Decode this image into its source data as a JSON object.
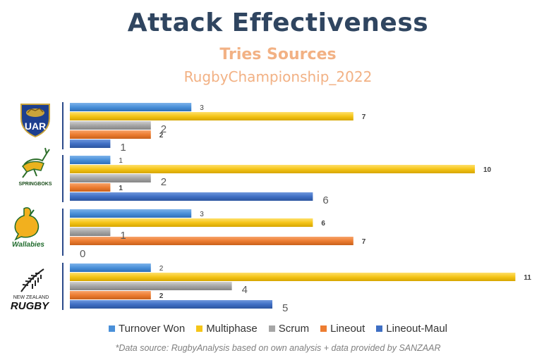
{
  "title": "Attack Effectiveness",
  "subtitle": "Tries Sources",
  "subtitle2": "RugbyChampionship_2022",
  "source": "*Data source: RugbyAnalysis based on own analysis + data provided by SANZAAR",
  "logos": {
    "uar": "UAR",
    "springboks": "SPRINGBOKS",
    "wallabies": "Wallabies",
    "nz_top": "NEW ZEALAND",
    "nz_bottom": "RUGBY"
  },
  "chart_data": {
    "type": "bar",
    "orientation": "horizontal",
    "categories": [
      "UAR",
      "Springboks",
      "Wallabies",
      "New Zealand Rugby"
    ],
    "series": [
      {
        "name": "Turnover Won",
        "color": "#4a90d9",
        "values": [
          3,
          1,
          3,
          2
        ]
      },
      {
        "name": "Multiphase",
        "color": "#f5c518",
        "values": [
          7,
          10,
          6,
          11
        ]
      },
      {
        "name": "Scrum",
        "color": "#a6a6a6",
        "values": [
          2,
          2,
          1,
          4
        ]
      },
      {
        "name": "Lineout",
        "color": "#ed7d31",
        "values": [
          2,
          1,
          7,
          2
        ]
      },
      {
        "name": "Lineout-Maul",
        "color": "#3f6fc4",
        "values": [
          1,
          6,
          0,
          5
        ]
      }
    ],
    "label_styles": [
      [
        "small",
        "small",
        "large",
        "small",
        "large"
      ],
      [
        "small",
        "small",
        "large",
        "small",
        "large"
      ],
      [
        "small",
        "small",
        "large",
        "small",
        "large"
      ],
      [
        "small",
        "small",
        "large",
        "small",
        "large"
      ]
    ],
    "xlim": [
      0,
      11
    ],
    "legend_position": "bottom",
    "grid": false
  }
}
